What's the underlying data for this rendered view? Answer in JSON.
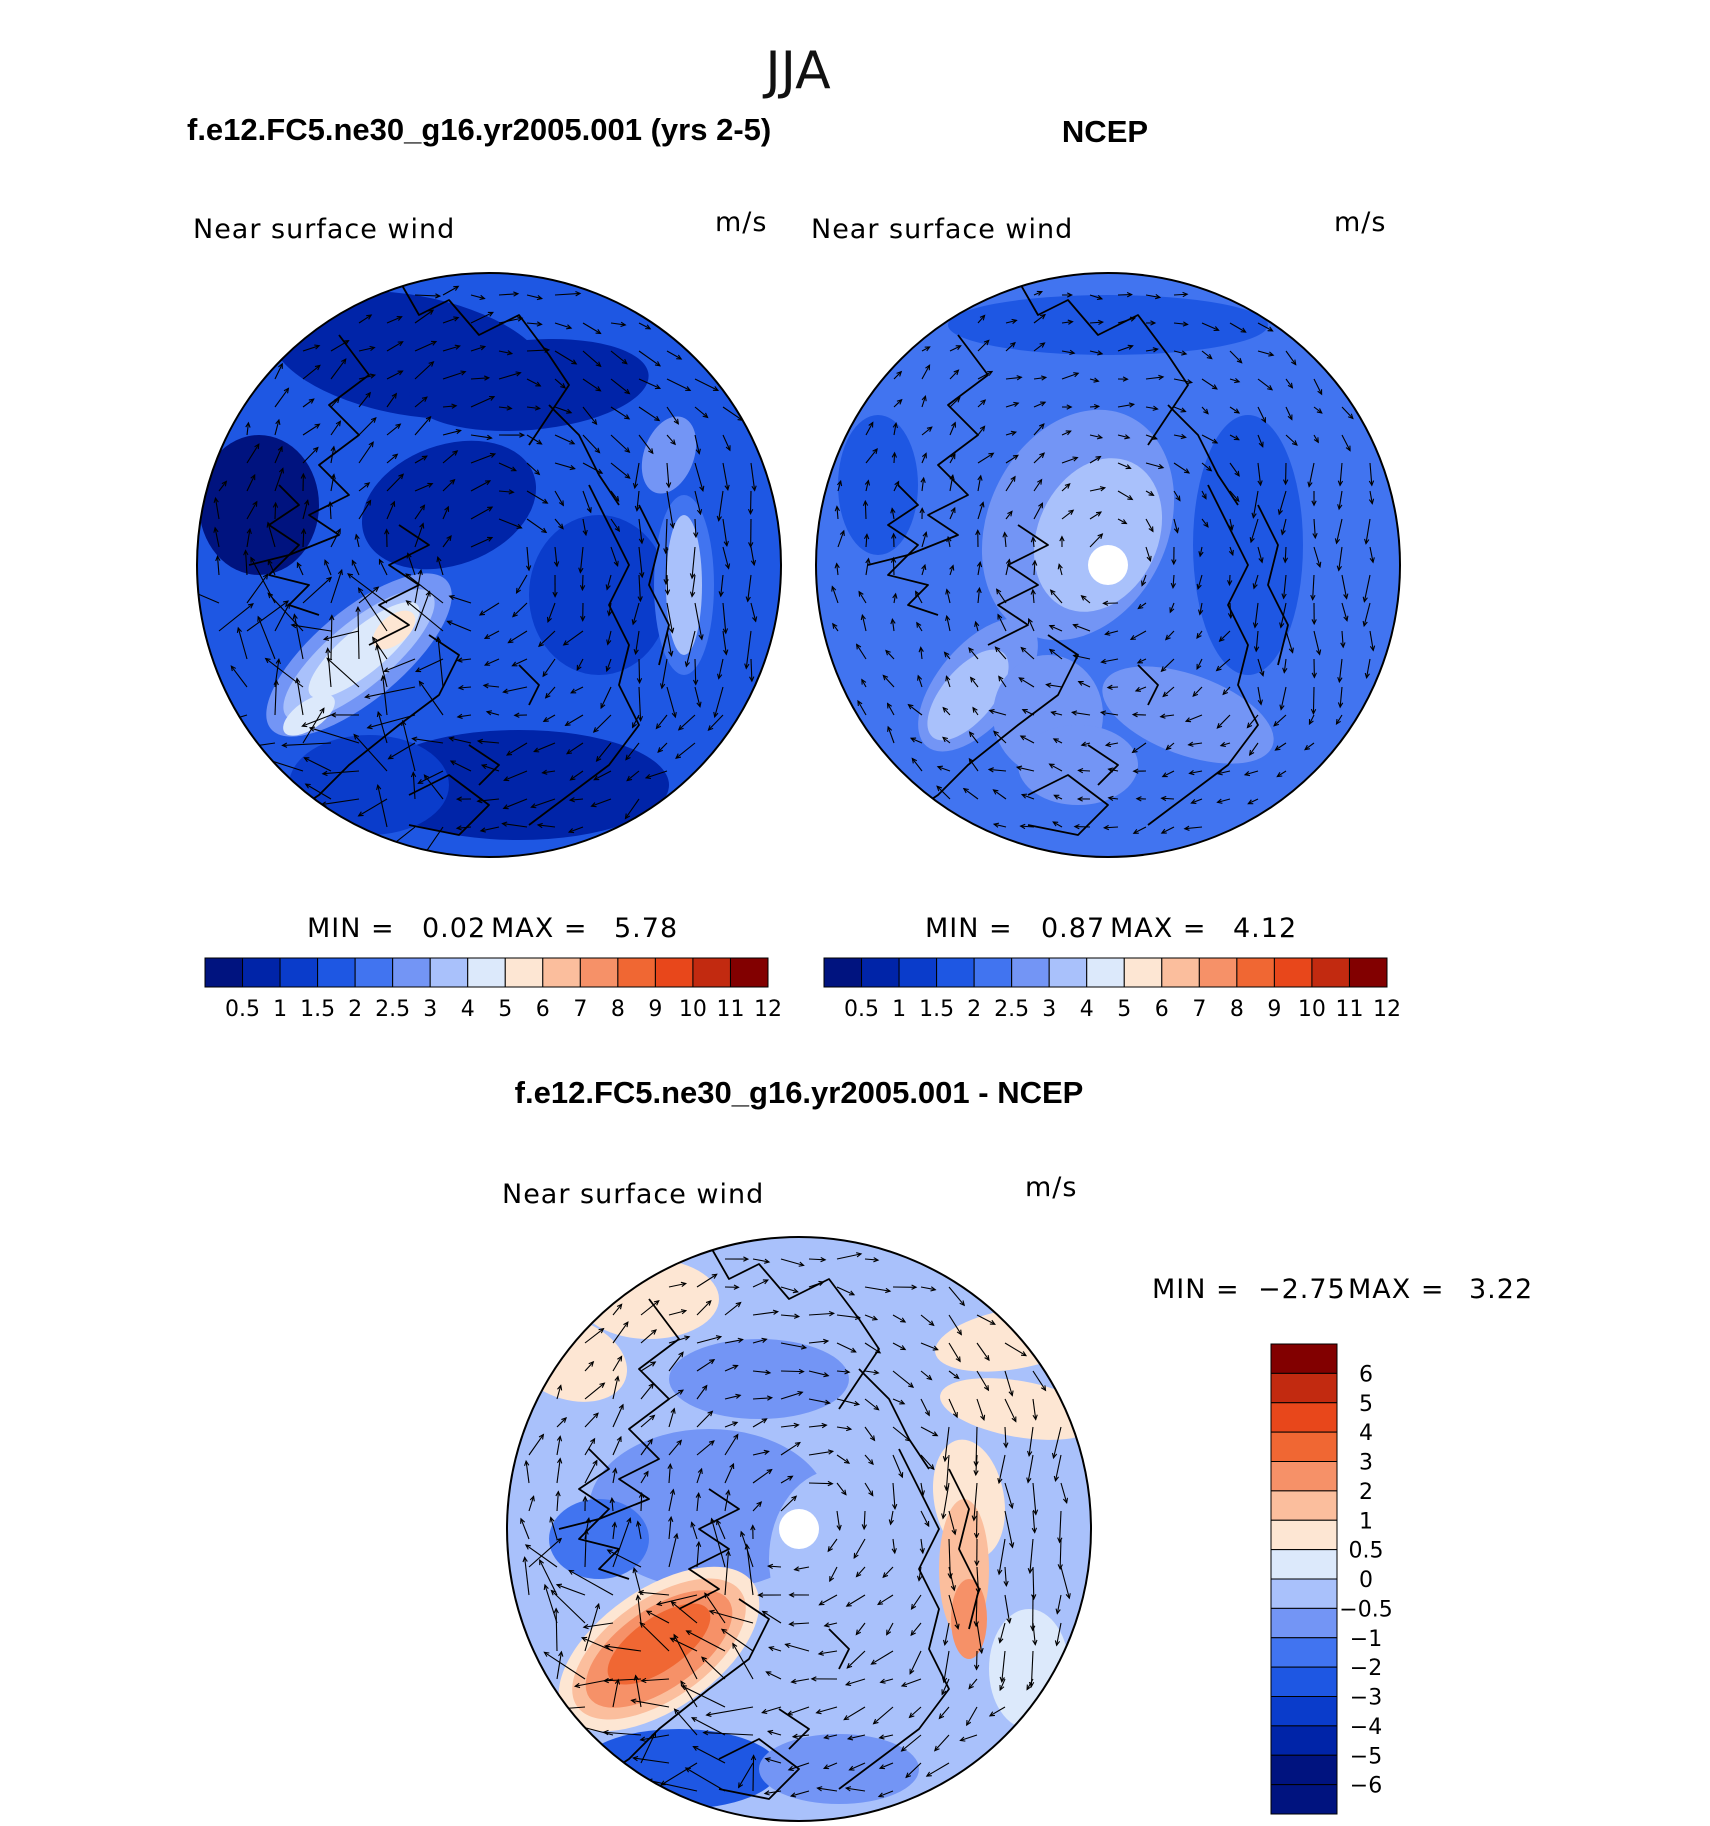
{
  "figure": {
    "title": "JJA"
  },
  "palette": {
    "abs": [
      "#00137f",
      "#0024a8",
      "#0a3ccb",
      "#1e57e3",
      "#4174f0",
      "#7395f5",
      "#a9c1fb",
      "#dce9fb",
      "#fde6d3",
      "#fbbe9d",
      "#f69168",
      "#f06733",
      "#e8471b",
      "#c22a10",
      "#820000"
    ],
    "diff": [
      "#00137f",
      "#0024a8",
      "#0a3ccb",
      "#1e57e3",
      "#4174f0",
      "#7395f5",
      "#a9c1fb",
      "#dce9fb",
      "#fde6d3",
      "#fbbe9d",
      "#f69168",
      "#f06733",
      "#e8471b",
      "#c22a10",
      "#820000"
    ]
  },
  "chart_data": [
    {
      "type": "heatmap",
      "panel_title": "f.e12.FC5.ne30_g16.yr2005.001 (yrs 2-5)",
      "variable_label": "Near surface wind",
      "units": "m/s",
      "projection": "north-polar-stereographic",
      "min_label": "MIN =",
      "min_value": "0.02",
      "max_label": "MAX =",
      "max_value": "5.78",
      "levels": [
        "0.5",
        "1",
        "1.5",
        "2",
        "2.5",
        "3",
        "4",
        "5",
        "6",
        "7",
        "8",
        "9",
        "10",
        "11",
        "12"
      ]
    },
    {
      "type": "heatmap",
      "panel_title": "NCEP",
      "variable_label": "Near surface wind",
      "units": "m/s",
      "projection": "north-polar-stereographic",
      "min_label": "MIN =",
      "min_value": "0.87",
      "max_label": "MAX =",
      "max_value": "4.12",
      "levels": [
        "0.5",
        "1",
        "1.5",
        "2",
        "2.5",
        "3",
        "4",
        "5",
        "6",
        "7",
        "8",
        "9",
        "10",
        "11",
        "12"
      ]
    },
    {
      "type": "heatmap",
      "panel_title": "f.e12.FC5.ne30_g16.yr2005.001 - NCEP",
      "variable_label": "Near surface wind",
      "units": "m/s",
      "projection": "north-polar-stereographic",
      "min_label": "MIN =",
      "min_value": "−2.75",
      "max_label": "MAX =",
      "max_value": "3.22",
      "levels": [
        "6",
        "5",
        "4",
        "3",
        "2",
        "1",
        "0.5",
        "0",
        "−0.5",
        "−1",
        "−2",
        "−3",
        "−4",
        "−5",
        "−6"
      ]
    }
  ]
}
